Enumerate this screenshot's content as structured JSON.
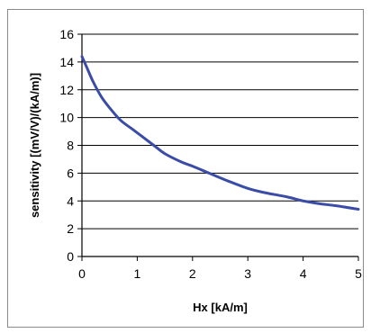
{
  "chart_data": {
    "type": "line",
    "xlabel": "Hx [kA/m]",
    "ylabel": "sensitivity [(mV/V)/(kA/m)]",
    "xlim": [
      0,
      5
    ],
    "ylim": [
      0,
      16
    ],
    "x_ticks": [
      "0",
      "1",
      "2",
      "3",
      "4",
      "5"
    ],
    "y_ticks": [
      "0",
      "2",
      "4",
      "6",
      "8",
      "10",
      "12",
      "14",
      "16"
    ],
    "grid": "horizontal",
    "legend": "none",
    "colors": {
      "line": "#3a4ca8",
      "grid": "#000000",
      "axis": "#000000"
    },
    "series": [
      {
        "x": [
          0,
          0.1,
          0.2,
          0.35,
          0.5,
          0.7,
          0.9,
          1.1,
          1.3,
          1.5,
          1.8,
          2.0,
          2.3,
          2.6,
          3.0,
          3.3,
          3.7,
          4.0,
          4.3,
          4.6,
          5.0
        ],
        "values": [
          14.4,
          13.5,
          12.6,
          11.5,
          10.7,
          9.8,
          9.2,
          8.6,
          8.0,
          7.4,
          6.8,
          6.5,
          6.0,
          5.5,
          4.9,
          4.6,
          4.3,
          4.0,
          3.8,
          3.65,
          3.4
        ]
      }
    ]
  }
}
